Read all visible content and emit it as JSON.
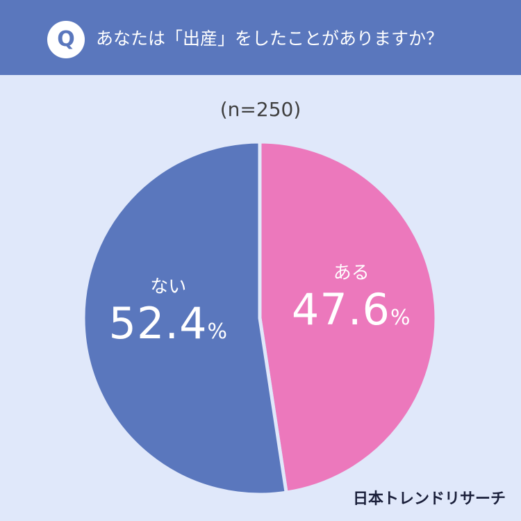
{
  "header": {
    "badge": "Q",
    "question": "あなたは「出産」をしたことがありますか？"
  },
  "sample_size": "(n=250)",
  "brand": "日本トレンドリサーチ",
  "colors": {
    "header_bg": "#5a77bd",
    "page_bg": "#e0e8fa",
    "nai": "#5a77bd",
    "aru": "#ec78bc"
  },
  "chart_data": {
    "type": "pie",
    "title": "あなたは「出産」をしたことがありますか？",
    "slices": [
      {
        "label": "ある",
        "value": 47.6,
        "display": "47.6",
        "unit": "%",
        "color": "#ec78bc"
      },
      {
        "label": "ない",
        "value": 52.4,
        "display": "52.4",
        "unit": "%",
        "color": "#5a77bd"
      }
    ],
    "start_angle": "12 o'clock",
    "direction": "clockwise"
  }
}
